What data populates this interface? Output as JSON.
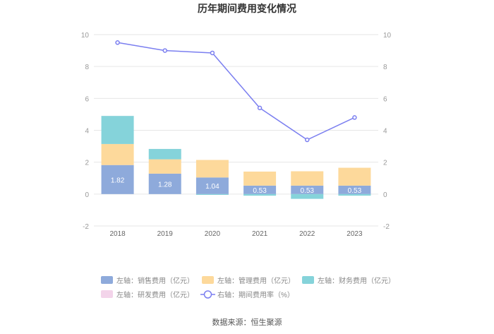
{
  "chart_data": {
    "type": "bar",
    "title": "历年期间费用变化情况",
    "categories": [
      "2018",
      "2019",
      "2020",
      "2021",
      "2022",
      "2023"
    ],
    "left_axis": {
      "ylim": [
        -2,
        10
      ],
      "ticks": [
        "-2",
        "0",
        "2",
        "4",
        "6",
        "8",
        "10"
      ]
    },
    "right_axis": {
      "ylim": [
        -2,
        10
      ],
      "ticks": [
        "-2",
        "0",
        "2",
        "4",
        "6",
        "8",
        "10"
      ]
    },
    "series": [
      {
        "name": "左轴：销售费用（亿元）",
        "type": "bar",
        "axis": "left",
        "color": "#8eaadb",
        "values": [
          1.82,
          1.28,
          1.04,
          0.53,
          0.53,
          0.53
        ],
        "labels": [
          "1.82",
          "1.28",
          "1.04",
          "0.53",
          "0.53",
          "0.53"
        ]
      },
      {
        "name": "左轴：管理费用（亿元）",
        "type": "bar",
        "axis": "left",
        "color": "#fdd99b",
        "values": [
          1.32,
          0.9,
          1.1,
          0.88,
          0.9,
          1.12
        ]
      },
      {
        "name": "左轴：财务费用（亿元）",
        "type": "bar",
        "axis": "left",
        "color": "#85d3da",
        "values": [
          1.76,
          0.65,
          -0.05,
          -0.1,
          -0.3,
          -0.1
        ]
      },
      {
        "name": "左轴：研发费用（亿元）",
        "type": "bar",
        "axis": "left",
        "color": "#f3d4ea",
        "values": [
          0,
          0,
          0,
          0,
          0,
          0
        ]
      },
      {
        "name": "右轴：期间费用率（%）",
        "type": "line",
        "axis": "right",
        "color": "#7b7ff0",
        "values": [
          9.5,
          9.0,
          8.85,
          5.4,
          3.4,
          4.8
        ]
      }
    ],
    "grid": true,
    "legend_position": "bottom"
  },
  "source": "数据来源：恒生聚源"
}
